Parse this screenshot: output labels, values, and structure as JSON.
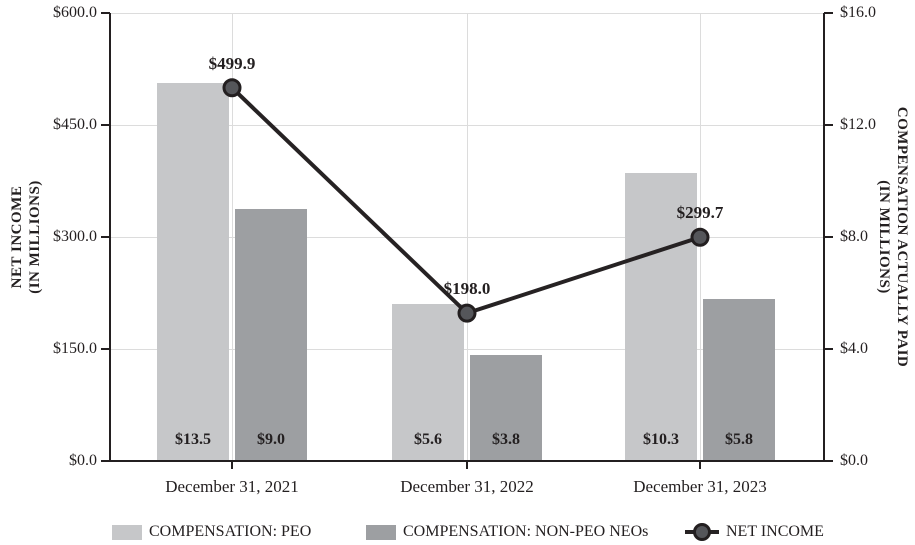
{
  "colors": {
    "background": "#ffffff",
    "text": "#231f20",
    "grid": "#dcdcdc",
    "axis": "#231f20",
    "bar_peo": "#c6c7c9",
    "bar_nonpeo": "#9d9fa2",
    "line": "#262223",
    "marker_fill": "#55565a",
    "marker_stroke": "#231f20"
  },
  "chart_data": {
    "type": "combo-bar-line",
    "categories": [
      "December 31, 2021",
      "December 31, 2022",
      "December 31, 2023"
    ],
    "series": [
      {
        "name": "COMPENSATION: PEO",
        "type": "bar",
        "axis": "right",
        "color": "#c6c7c9",
        "values": [
          13.5,
          5.6,
          10.3
        ],
        "labels": [
          "$13.5",
          "$5.6",
          "$10.3"
        ]
      },
      {
        "name": "COMPENSATION: NON-PEO NEOs",
        "type": "bar",
        "axis": "right",
        "color": "#9d9fa2",
        "values": [
          9.0,
          3.8,
          5.8
        ],
        "labels": [
          "$9.0",
          "$3.8",
          "$5.8"
        ]
      },
      {
        "name": "NET INCOME",
        "type": "line",
        "axis": "left",
        "color": "#262223",
        "marker_fill": "#55565a",
        "marker_stroke": "#231f20",
        "values": [
          499.9,
          198.0,
          299.7
        ],
        "labels": [
          "$499.9",
          "$198.0",
          "$299.7"
        ]
      }
    ],
    "left_axis": {
      "title_line1": "NET INCOME",
      "title_line2": "(IN MILLIONS)",
      "min": 0,
      "max": 600,
      "ticks": [
        600,
        450,
        300,
        150,
        0
      ],
      "tick_labels": [
        "$600.0",
        "$450.0",
        "$300.0",
        "$150.0",
        "$0.0"
      ]
    },
    "right_axis": {
      "title_line1": "COMPENSATION ACTUALLY PAID",
      "title_line2": "(IN MILLIONS)",
      "min": 0,
      "max": 16,
      "ticks": [
        16,
        12,
        8,
        4,
        0
      ],
      "tick_labels": [
        "$16.0",
        "$12.0",
        "$8.0",
        "$4.0",
        "$0.0"
      ]
    },
    "grid": true,
    "legend_position": "bottom"
  }
}
